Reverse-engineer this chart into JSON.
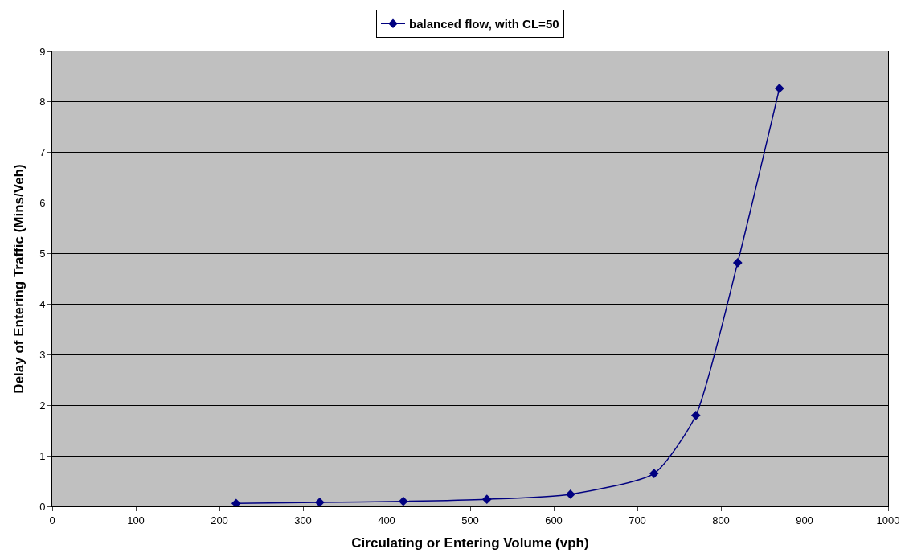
{
  "chart_data": {
    "type": "line",
    "xlabel": "Circulating or Entering Volume (vph)",
    "ylabel": "Delay of Entering Traffic (Mins/Veh)",
    "x": [
      220,
      320,
      420,
      520,
      620,
      720,
      770,
      820,
      870
    ],
    "series": [
      {
        "name": "balanced flow, with CL=50",
        "color": "#000080",
        "values": [
          0.06,
          0.08,
          0.1,
          0.14,
          0.24,
          0.65,
          1.8,
          4.82,
          8.27
        ]
      }
    ],
    "xlim": [
      0,
      1000
    ],
    "xticks": [
      0,
      100,
      200,
      300,
      400,
      500,
      600,
      700,
      800,
      900,
      1000
    ],
    "ylim": [
      0,
      9
    ],
    "yticks": [
      0,
      1,
      2,
      3,
      4,
      5,
      6,
      7,
      8,
      9
    ],
    "grid": "y",
    "legend": "top",
    "marker": "diamond",
    "line_style": "solid"
  }
}
